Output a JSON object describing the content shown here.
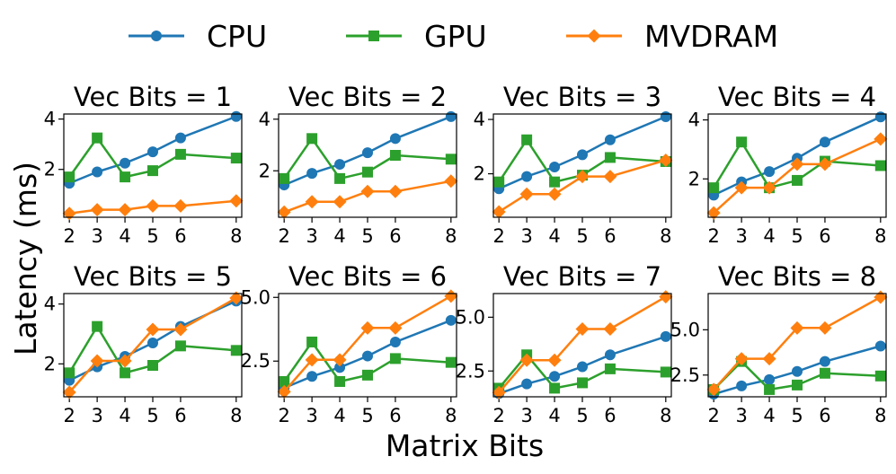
{
  "legend": [
    {
      "name": "CPU",
      "color": "#1f77b4",
      "marker": "circle"
    },
    {
      "name": "GPU",
      "color": "#2ca02c",
      "marker": "square"
    },
    {
      "name": "MVDRAM",
      "color": "#ff7f0e",
      "marker": "diamond"
    }
  ],
  "figure": {
    "xlabel": "Matrix Bits",
    "ylabel": "Latency (ms)"
  },
  "chart_data": [
    {
      "type": "line",
      "title": "Vec Bits = 1",
      "x": [
        2,
        3,
        4,
        5,
        6,
        8
      ],
      "xticks": [
        "2",
        "3",
        "4",
        "5",
        "6",
        "8"
      ],
      "ylim": [
        0.1,
        4.2
      ],
      "yticks": [
        2,
        4
      ],
      "ytick_labels": [
        "2",
        "4"
      ],
      "series": [
        {
          "name": "CPU",
          "values": [
            1.45,
            1.9,
            2.25,
            2.7,
            3.25,
            4.1
          ]
        },
        {
          "name": "GPU",
          "values": [
            1.7,
            3.25,
            1.7,
            1.95,
            2.6,
            2.45
          ]
        },
        {
          "name": "MVDRAM",
          "values": [
            0.25,
            0.4,
            0.4,
            0.55,
            0.55,
            0.75
          ]
        }
      ]
    },
    {
      "type": "line",
      "title": "Vec Bits = 2",
      "x": [
        2,
        3,
        4,
        5,
        6,
        8
      ],
      "xticks": [
        "2",
        "3",
        "4",
        "5",
        "6",
        "8"
      ],
      "ylim": [
        0.2,
        4.2
      ],
      "yticks": [
        2,
        4
      ],
      "ytick_labels": [
        "2",
        "4"
      ],
      "series": [
        {
          "name": "CPU",
          "values": [
            1.45,
            1.9,
            2.25,
            2.7,
            3.25,
            4.1
          ]
        },
        {
          "name": "GPU",
          "values": [
            1.7,
            3.25,
            1.7,
            1.95,
            2.6,
            2.45
          ]
        },
        {
          "name": "MVDRAM",
          "values": [
            0.4,
            0.8,
            0.8,
            1.2,
            1.2,
            1.6
          ]
        }
      ]
    },
    {
      "type": "line",
      "title": "Vec Bits = 3",
      "x": [
        2,
        3,
        4,
        5,
        6,
        8
      ],
      "xticks": [
        "2",
        "3",
        "4",
        "5",
        "6",
        "8"
      ],
      "ylim": [
        0.4,
        4.2
      ],
      "yticks": [
        2,
        4
      ],
      "ytick_labels": [
        "2",
        "4"
      ],
      "series": [
        {
          "name": "CPU",
          "values": [
            1.45,
            1.9,
            2.25,
            2.7,
            3.25,
            4.1
          ]
        },
        {
          "name": "GPU",
          "values": [
            1.7,
            3.25,
            1.7,
            1.95,
            2.6,
            2.45
          ]
        },
        {
          "name": "MVDRAM",
          "values": [
            0.6,
            1.25,
            1.25,
            1.9,
            1.9,
            2.5
          ]
        }
      ]
    },
    {
      "type": "line",
      "title": "Vec Bits = 4",
      "x": [
        2,
        3,
        4,
        5,
        6,
        8
      ],
      "xticks": [
        "2",
        "3",
        "4",
        "5",
        "6",
        "8"
      ],
      "ylim": [
        0.7,
        4.2
      ],
      "yticks": [
        2,
        4
      ],
      "ytick_labels": [
        "2",
        "4"
      ],
      "series": [
        {
          "name": "CPU",
          "values": [
            1.45,
            1.9,
            2.25,
            2.7,
            3.25,
            4.1
          ]
        },
        {
          "name": "GPU",
          "values": [
            1.7,
            3.25,
            1.7,
            1.95,
            2.6,
            2.45
          ]
        },
        {
          "name": "MVDRAM",
          "values": [
            0.85,
            1.7,
            1.7,
            2.5,
            2.5,
            3.35
          ]
        }
      ]
    },
    {
      "type": "line",
      "title": "Vec Bits = 5",
      "x": [
        2,
        3,
        4,
        5,
        6,
        8
      ],
      "xticks": [
        "2",
        "3",
        "4",
        "5",
        "6",
        "8"
      ],
      "ylim": [
        0.9,
        4.35
      ],
      "yticks": [
        2,
        4
      ],
      "ytick_labels": [
        "2",
        "4"
      ],
      "series": [
        {
          "name": "CPU",
          "values": [
            1.45,
            1.9,
            2.25,
            2.7,
            3.25,
            4.1
          ]
        },
        {
          "name": "GPU",
          "values": [
            1.7,
            3.25,
            1.7,
            1.95,
            2.6,
            2.45
          ]
        },
        {
          "name": "MVDRAM",
          "values": [
            1.05,
            2.1,
            2.1,
            3.15,
            3.15,
            4.2
          ]
        }
      ]
    },
    {
      "type": "line",
      "title": "Vec Bits = 6",
      "x": [
        2,
        3,
        4,
        5,
        6,
        8
      ],
      "xticks": [
        "2",
        "3",
        "4",
        "5",
        "6",
        "8"
      ],
      "ylim": [
        1.1,
        5.15
      ],
      "yticks": [
        2.5,
        5.0
      ],
      "ytick_labels": [
        "2.5",
        "5.0"
      ],
      "series": [
        {
          "name": "CPU",
          "values": [
            1.45,
            1.9,
            2.25,
            2.7,
            3.25,
            4.1
          ]
        },
        {
          "name": "GPU",
          "values": [
            1.7,
            3.25,
            1.7,
            1.95,
            2.6,
            2.45
          ]
        },
        {
          "name": "MVDRAM",
          "values": [
            1.3,
            2.55,
            2.55,
            3.8,
            3.8,
            5.05
          ]
        }
      ]
    },
    {
      "type": "line",
      "title": "Vec Bits = 7",
      "x": [
        2,
        3,
        4,
        5,
        6,
        8
      ],
      "xticks": [
        "2",
        "3",
        "4",
        "5",
        "6",
        "8"
      ],
      "ylim": [
        1.3,
        6.1
      ],
      "yticks": [
        2.5,
        5.0
      ],
      "ytick_labels": [
        "2.5",
        "5.0"
      ],
      "series": [
        {
          "name": "CPU",
          "values": [
            1.45,
            1.9,
            2.25,
            2.7,
            3.25,
            4.1
          ]
        },
        {
          "name": "GPU",
          "values": [
            1.7,
            3.25,
            1.7,
            1.95,
            2.6,
            2.45
          ]
        },
        {
          "name": "MVDRAM",
          "values": [
            1.5,
            3.0,
            3.0,
            4.45,
            4.45,
            5.95
          ]
        }
      ]
    },
    {
      "type": "line",
      "title": "Vec Bits = 8",
      "x": [
        2,
        3,
        4,
        5,
        6,
        8
      ],
      "xticks": [
        "2",
        "3",
        "4",
        "5",
        "6",
        "8"
      ],
      "ylim": [
        1.3,
        7.0
      ],
      "yticks": [
        2.5,
        5.0
      ],
      "ytick_labels": [
        "2.5",
        "5.0"
      ],
      "series": [
        {
          "name": "CPU",
          "values": [
            1.45,
            1.9,
            2.25,
            2.7,
            3.25,
            4.1
          ]
        },
        {
          "name": "GPU",
          "values": [
            1.7,
            3.25,
            1.7,
            1.95,
            2.6,
            2.45
          ]
        },
        {
          "name": "MVDRAM",
          "values": [
            1.7,
            3.4,
            3.4,
            5.1,
            5.1,
            6.8
          ]
        }
      ]
    }
  ]
}
